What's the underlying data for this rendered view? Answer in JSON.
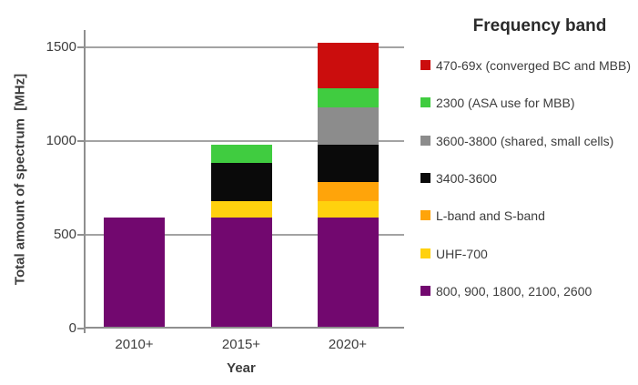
{
  "chart_data": {
    "type": "bar",
    "stacked": true,
    "categories": [
      "2010+",
      "2015+",
      "2020+"
    ],
    "series": [
      {
        "name": "800, 900, 1800, 2100, 2600",
        "color": "#72086F",
        "values": [
          590,
          590,
          590
        ]
      },
      {
        "name": "UHF-700",
        "color": "#FFD10E",
        "values": [
          0,
          90,
          90
        ]
      },
      {
        "name": "L-band and S-band",
        "color": "#FFA40A",
        "values": [
          0,
          0,
          100
        ]
      },
      {
        "name": "3400-3600",
        "color": "#0A0A0A",
        "values": [
          0,
          200,
          200
        ]
      },
      {
        "name": "3600-3800 (shared, small cells)",
        "color": "#8C8C8C",
        "values": [
          0,
          0,
          200
        ]
      },
      {
        "name": "2300 (ASA use for MBB)",
        "color": "#40CC40",
        "values": [
          0,
          100,
          100
        ]
      },
      {
        "name": "470-69x (converged BC and MBB)",
        "color": "#CB0D0D",
        "values": [
          0,
          0,
          240
        ]
      }
    ],
    "totals": [
      590,
      980,
      1520
    ],
    "xlabel": "Year",
    "ylabel": "Total amount of spectrum  [MHz]",
    "yticks": [
      0,
      500,
      1000,
      1500
    ],
    "ylim": [
      0,
      1590
    ],
    "grid": true,
    "legend_title": "Frequency band",
    "legend_position": "right",
    "legend_order_top_to_bottom": [
      "470-69x (converged BC and MBB)",
      "2300 (ASA use for MBB)",
      "3600-3800 (shared, small cells)",
      "3400-3600",
      "L-band and S-band",
      "UHF-700",
      "800, 900, 1800, 2100, 2600"
    ],
    "colors": {
      "grid": "#a3a3a3",
      "axis": "#8f8f8f",
      "axis_text": "#3d3d3d"
    }
  }
}
